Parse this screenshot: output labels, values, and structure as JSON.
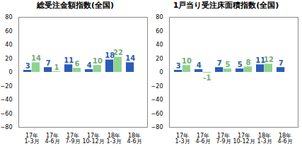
{
  "chart_data": [
    {
      "type": "bar",
      "title": "総受注金額指数(全国)",
      "categories": [
        "17年\n1-3月",
        "17年\n4-6月",
        "17年\n7-9月",
        "17年\n10-12月",
        "18年\n1-3月",
        "18年\n4-6月"
      ],
      "series": [
        {
          "color": "#2a5cb8",
          "values": [
            3,
            7,
            11,
            4,
            18,
            14
          ]
        },
        {
          "color": "#8fd48f",
          "values": [
            14,
            1,
            6,
            10,
            22,
            null
          ]
        }
      ],
      "ylim": [
        -80,
        80
      ],
      "yticks": [
        -80,
        -60,
        -40,
        -20,
        0,
        20,
        40,
        60,
        80
      ],
      "grid": false,
      "data_labels": true
    },
    {
      "type": "bar",
      "title": "1戸当り受注床面積指数(全国)",
      "categories": [
        "17年\n1-3月",
        "17年\n4-6月",
        "17年\n7-9月",
        "17年\n10-12月",
        "18年\n1-3月",
        "18年\n4-6月"
      ],
      "series": [
        {
          "color": "#2a5cb8",
          "values": [
            3,
            4,
            7,
            5,
            11,
            7
          ]
        },
        {
          "color": "#8fd48f",
          "values": [
            10,
            -1,
            5,
            8,
            12,
            null
          ]
        }
      ],
      "ylim": [
        -80,
        80
      ],
      "yticks": [
        -80,
        -60,
        -40,
        -20,
        0,
        20,
        40,
        60,
        80
      ],
      "grid": false,
      "data_labels": true
    }
  ]
}
